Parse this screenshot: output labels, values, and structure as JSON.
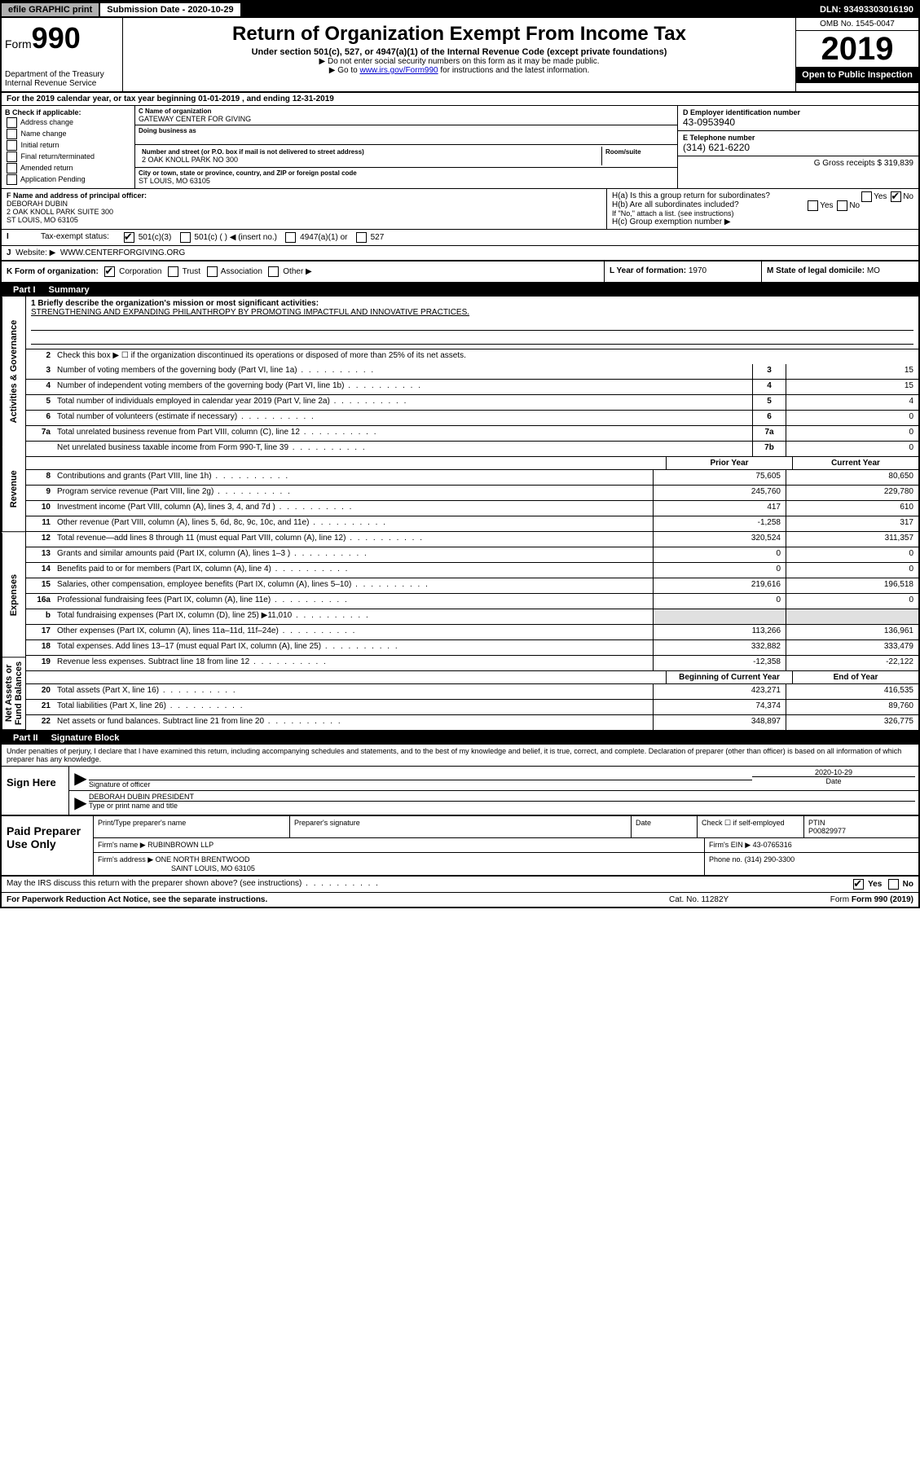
{
  "topbar": {
    "efile": "efile GRAPHIC print",
    "submission": "Submission Date - 2020-10-29",
    "dln": "DLN: 93493303016190"
  },
  "header": {
    "form_label": "Form",
    "form_number": "990",
    "title": "Return of Organization Exempt From Income Tax",
    "subtitle": "Under section 501(c), 527, or 4947(a)(1) of the Internal Revenue Code (except private foundations)",
    "note1": "▶ Do not enter social security numbers on this form as it may be made public.",
    "note2_pre": "▶ Go to ",
    "note2_link": "www.irs.gov/Form990",
    "note2_post": " for instructions and the latest information.",
    "dept": "Department of the Treasury\nInternal Revenue Service",
    "omb": "OMB No. 1545-0047",
    "year": "2019",
    "open": "Open to Public Inspection"
  },
  "section_a": {
    "calendar": "For the 2019 calendar year, or tax year beginning 01-01-2019   , and ending 12-31-2019",
    "b_label": "B Check if applicable:",
    "b_items": [
      "Address change",
      "Name change",
      "Initial return",
      "Final return/terminated",
      "Amended return",
      "Application Pending"
    ],
    "c_name_label": "C Name of organization",
    "c_name": "GATEWAY CENTER FOR GIVING",
    "dba_label": "Doing business as",
    "addr_label": "Number and street (or P.O. box if mail is not delivered to street address)",
    "room_label": "Room/suite",
    "addr": "2 OAK KNOLL PARK NO 300",
    "city_label": "City or town, state or province, country, and ZIP or foreign postal code",
    "city": "ST LOUIS, MO  63105",
    "d_label": "D Employer identification number",
    "d_val": "43-0953940",
    "e_label": "E Telephone number",
    "e_val": "(314) 621-6220",
    "g_label": "G Gross receipts $ 319,839"
  },
  "row_fh": {
    "f_label": "F  Name and address of principal officer:",
    "f_name": "DEBORAH DUBIN",
    "f_addr1": "2 OAK KNOLL PARK SUITE 300",
    "f_addr2": "ST LOUIS, MO  63105",
    "ha": "H(a)  Is this a group return for subordinates?",
    "hb": "H(b)  Are all subordinates included?",
    "hb_note": "If \"No,\" attach a list. (see instructions)",
    "hc": "H(c)  Group exemption number ▶"
  },
  "row_i": {
    "label": "Tax-exempt status:",
    "opt1": "501(c)(3)",
    "opt2": "501(c) (   ) ◀ (insert no.)",
    "opt3": "4947(a)(1) or",
    "opt4": "527"
  },
  "row_j": {
    "label": "Website: ▶",
    "val": "WWW.CENTERFORGIVING.ORG"
  },
  "row_klm": {
    "k": "K Form of organization:",
    "k_opts": [
      "Corporation",
      "Trust",
      "Association",
      "Other ▶"
    ],
    "l_label": "L Year of formation: ",
    "l_val": "1970",
    "m_label": "M State of legal domicile: ",
    "m_val": "MO"
  },
  "part1": {
    "header": "Part I",
    "title": "Summary",
    "mission_label": "1  Briefly describe the organization's mission or most significant activities:",
    "mission": "STRENGTHENING AND EXPANDING PHILANTHROPY BY PROMOTING IMPACTFUL AND INNOVATIVE PRACTICES.",
    "line2": "Check this box ▶ ☐  if the organization discontinued its operations or disposed of more than 25% of its net assets.",
    "sidetabs": [
      "Activities & Governance",
      "Revenue",
      "Expenses",
      "Net Assets or Fund Balances"
    ],
    "hdr_prior": "Prior Year",
    "hdr_current": "Current Year",
    "hdr_begin": "Beginning of Current Year",
    "hdr_end": "End of Year",
    "gov_lines": [
      {
        "n": "3",
        "d": "Number of voting members of the governing body (Part VI, line 1a)",
        "box": "3",
        "v": "15"
      },
      {
        "n": "4",
        "d": "Number of independent voting members of the governing body (Part VI, line 1b)",
        "box": "4",
        "v": "15"
      },
      {
        "n": "5",
        "d": "Total number of individuals employed in calendar year 2019 (Part V, line 2a)",
        "box": "5",
        "v": "4"
      },
      {
        "n": "6",
        "d": "Total number of volunteers (estimate if necessary)",
        "box": "6",
        "v": "0"
      },
      {
        "n": "7a",
        "d": "Total unrelated business revenue from Part VIII, column (C), line 12",
        "box": "7a",
        "v": "0"
      },
      {
        "n": "",
        "d": "Net unrelated business taxable income from Form 990-T, line 39",
        "box": "7b",
        "v": "0"
      }
    ],
    "rev_lines": [
      {
        "n": "8",
        "d": "Contributions and grants (Part VIII, line 1h)",
        "p": "75,605",
        "c": "80,650"
      },
      {
        "n": "9",
        "d": "Program service revenue (Part VIII, line 2g)",
        "p": "245,760",
        "c": "229,780"
      },
      {
        "n": "10",
        "d": "Investment income (Part VIII, column (A), lines 3, 4, and 7d )",
        "p": "417",
        "c": "610"
      },
      {
        "n": "11",
        "d": "Other revenue (Part VIII, column (A), lines 5, 6d, 8c, 9c, 10c, and 11e)",
        "p": "-1,258",
        "c": "317"
      },
      {
        "n": "12",
        "d": "Total revenue—add lines 8 through 11 (must equal Part VIII, column (A), line 12)",
        "p": "320,524",
        "c": "311,357"
      }
    ],
    "exp_lines": [
      {
        "n": "13",
        "d": "Grants and similar amounts paid (Part IX, column (A), lines 1–3 )",
        "p": "0",
        "c": "0"
      },
      {
        "n": "14",
        "d": "Benefits paid to or for members (Part IX, column (A), line 4)",
        "p": "0",
        "c": "0"
      },
      {
        "n": "15",
        "d": "Salaries, other compensation, employee benefits (Part IX, column (A), lines 5–10)",
        "p": "219,616",
        "c": "196,518"
      },
      {
        "n": "16a",
        "d": "Professional fundraising fees (Part IX, column (A), line 11e)",
        "p": "0",
        "c": "0"
      },
      {
        "n": "b",
        "d": "Total fundraising expenses (Part IX, column (D), line 25) ▶11,010",
        "p": "",
        "c": "",
        "gray": true
      },
      {
        "n": "17",
        "d": "Other expenses (Part IX, column (A), lines 11a–11d, 11f–24e)",
        "p": "113,266",
        "c": "136,961"
      },
      {
        "n": "18",
        "d": "Total expenses. Add lines 13–17 (must equal Part IX, column (A), line 25)",
        "p": "332,882",
        "c": "333,479"
      },
      {
        "n": "19",
        "d": "Revenue less expenses. Subtract line 18 from line 12",
        "p": "-12,358",
        "c": "-22,122"
      }
    ],
    "net_lines": [
      {
        "n": "20",
        "d": "Total assets (Part X, line 16)",
        "p": "423,271",
        "c": "416,535"
      },
      {
        "n": "21",
        "d": "Total liabilities (Part X, line 26)",
        "p": "74,374",
        "c": "89,760"
      },
      {
        "n": "22",
        "d": "Net assets or fund balances. Subtract line 21 from line 20",
        "p": "348,897",
        "c": "326,775"
      }
    ]
  },
  "part2": {
    "header": "Part II",
    "title": "Signature Block",
    "perjury": "Under penalties of perjury, I declare that I have examined this return, including accompanying schedules and statements, and to the best of my knowledge and belief, it is true, correct, and complete. Declaration of preparer (other than officer) is based on all information of which preparer has any knowledge.",
    "sign_here": "Sign Here",
    "sig_officer": "Signature of officer",
    "sig_date": "2020-10-29",
    "sig_date_label": "Date",
    "sig_name": "DEBORAH DUBIN  PRESIDENT",
    "sig_name_label": "Type or print name and title",
    "paid": "Paid Preparer Use Only",
    "prep_name_label": "Print/Type preparer's name",
    "prep_sig_label": "Preparer's signature",
    "date_label": "Date",
    "check_label": "Check ☐ if self-employed",
    "ptin_label": "PTIN",
    "ptin": "P00829977",
    "firm_name_label": "Firm's name    ▶",
    "firm_name": "RUBINBROWN LLP",
    "firm_ein_label": "Firm's EIN ▶",
    "firm_ein": "43-0765316",
    "firm_addr_label": "Firm's address ▶",
    "firm_addr1": "ONE NORTH BRENTWOOD",
    "firm_addr2": "SAINT LOUIS, MO  63105",
    "phone_label": "Phone no.",
    "phone": "(314) 290-3300",
    "discuss": "May the IRS discuss this return with the preparer shown above? (see instructions)",
    "yes": "Yes",
    "no": "No"
  },
  "footer": {
    "l": "For Paperwork Reduction Act Notice, see the separate instructions.",
    "c": "Cat. No. 11282Y",
    "r": "Form 990 (2019)"
  }
}
